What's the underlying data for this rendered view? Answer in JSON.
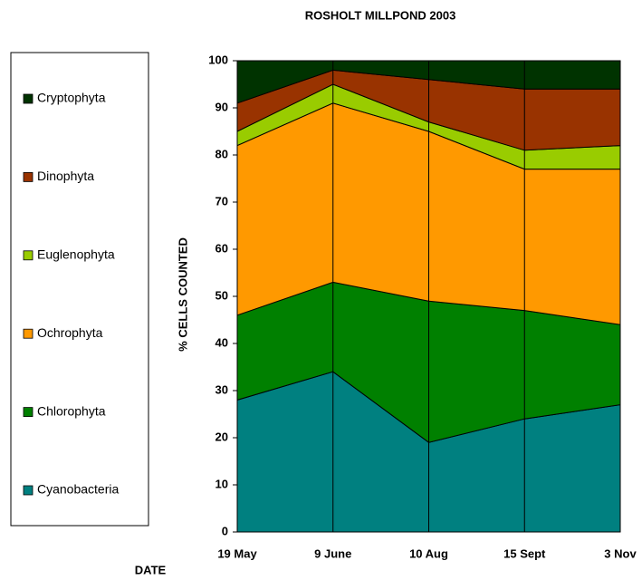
{
  "chart_data": {
    "type": "stacked_area",
    "title": "ROSHOLT MILLPOND 2003",
    "x_label": "DATE",
    "y_label": "% CELLS COUNTED",
    "categories": [
      "19 May",
      "9 June",
      "10 Aug",
      "15 Sept",
      "3 Nov"
    ],
    "series": [
      {
        "name": "Cyanobacteria",
        "color": "#008080",
        "values": [
          28,
          34,
          19,
          24,
          27
        ]
      },
      {
        "name": "Chlorophyta",
        "color": "#008000",
        "values": [
          18,
          19,
          30,
          23,
          17
        ]
      },
      {
        "name": "Ochrophyta",
        "color": "#FF9900",
        "values": [
          36,
          38,
          36,
          30,
          33
        ]
      },
      {
        "name": "Euglenophyta",
        "color": "#99CC00",
        "values": [
          3,
          4,
          2,
          4,
          5
        ]
      },
      {
        "name": "Dinophyta",
        "color": "#993300",
        "values": [
          6,
          3,
          9,
          13,
          12
        ]
      },
      {
        "name": "Cryptophyta",
        "color": "#003300",
        "values": [
          9,
          2,
          4,
          6,
          6
        ]
      }
    ],
    "ylim": [
      0,
      100
    ],
    "yticks": [
      0,
      10,
      20,
      30,
      40,
      50,
      60,
      70,
      80,
      90,
      100
    ]
  }
}
